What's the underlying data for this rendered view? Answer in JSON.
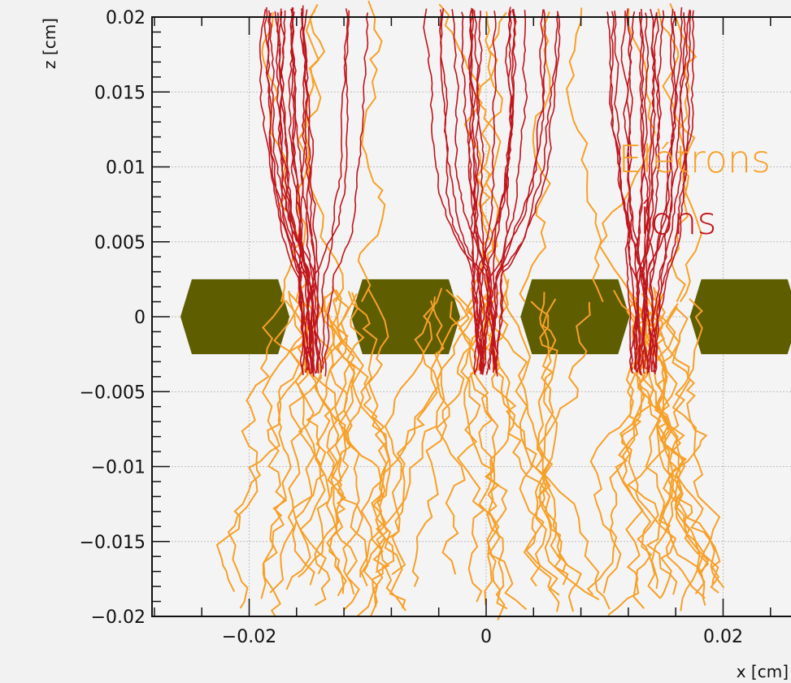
{
  "chart_data": {
    "type": "line",
    "xlabel": "x [cm]",
    "ylabel": "z [cm]",
    "xlim": [
      -0.0282,
      0.0282
    ],
    "ylim": [
      -0.02,
      0.02
    ],
    "grid": true,
    "legend_position": "top-right",
    "x_ticks": [
      {
        "value": -0.02,
        "label": "−0.02"
      },
      {
        "value": 0,
        "label": "0"
      },
      {
        "value": 0.02,
        "label": "0.02"
      }
    ],
    "y_ticks": [
      {
        "value": 0.02,
        "label": "0.02"
      },
      {
        "value": 0.015,
        "label": "0.015"
      },
      {
        "value": 0.01,
        "label": "0.01"
      },
      {
        "value": 0.005,
        "label": "0.005"
      },
      {
        "value": 0,
        "label": "0"
      },
      {
        "value": -0.005,
        "label": "−0.005"
      },
      {
        "value": -0.01,
        "label": "−0.01"
      },
      {
        "value": -0.015,
        "label": "−0.015"
      },
      {
        "value": -0.02,
        "label": "−0.02"
      }
    ],
    "series": [
      {
        "name": "Elétrons",
        "color": "#f7a028"
      },
      {
        "name": "Íons",
        "color": "#c0141c"
      }
    ],
    "electrodes": {
      "color": "#5e5e00",
      "centers_x": [
        -0.0212,
        -0.0068,
        0.0075,
        0.0218
      ],
      "half_width": 0.0046,
      "half_height": 0.0025
    }
  }
}
